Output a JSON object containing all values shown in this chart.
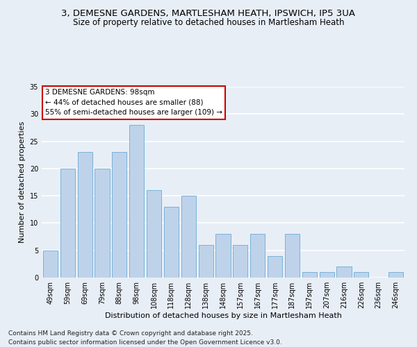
{
  "title": "3, DEMESNE GARDENS, MARTLESHAM HEATH, IPSWICH, IP5 3UA",
  "subtitle": "Size of property relative to detached houses in Martlesham Heath",
  "xlabel": "Distribution of detached houses by size in Martlesham Heath",
  "ylabel": "Number of detached properties",
  "categories": [
    "49sqm",
    "59sqm",
    "69sqm",
    "79sqm",
    "88sqm",
    "98sqm",
    "108sqm",
    "118sqm",
    "128sqm",
    "138sqm",
    "148sqm",
    "157sqm",
    "167sqm",
    "177sqm",
    "187sqm",
    "197sqm",
    "207sqm",
    "216sqm",
    "226sqm",
    "236sqm",
    "246sqm"
  ],
  "values": [
    5,
    20,
    23,
    20,
    23,
    28,
    16,
    13,
    15,
    6,
    8,
    6,
    8,
    4,
    8,
    1,
    1,
    2,
    1,
    0,
    1
  ],
  "bar_color": "#bed3ea",
  "bar_edge_color": "#6aaad4",
  "bg_color": "#e8eef6",
  "grid_color": "#ffffff",
  "annotation_text": "3 DEMESNE GARDENS: 98sqm\n← 44% of detached houses are smaller (88)\n55% of semi-detached houses are larger (109) →",
  "annotation_box_color": "#ffffff",
  "annotation_box_edge_color": "#cc0000",
  "footer_line1": "Contains HM Land Registry data © Crown copyright and database right 2025.",
  "footer_line2": "Contains public sector information licensed under the Open Government Licence v3.0.",
  "ylim": [
    0,
    35
  ],
  "yticks": [
    0,
    5,
    10,
    15,
    20,
    25,
    30,
    35
  ],
  "title_fontsize": 9.5,
  "subtitle_fontsize": 8.5,
  "ylabel_fontsize": 8,
  "xlabel_fontsize": 8,
  "tick_fontsize": 7,
  "annotation_fontsize": 7.5,
  "footer_fontsize": 6.5
}
